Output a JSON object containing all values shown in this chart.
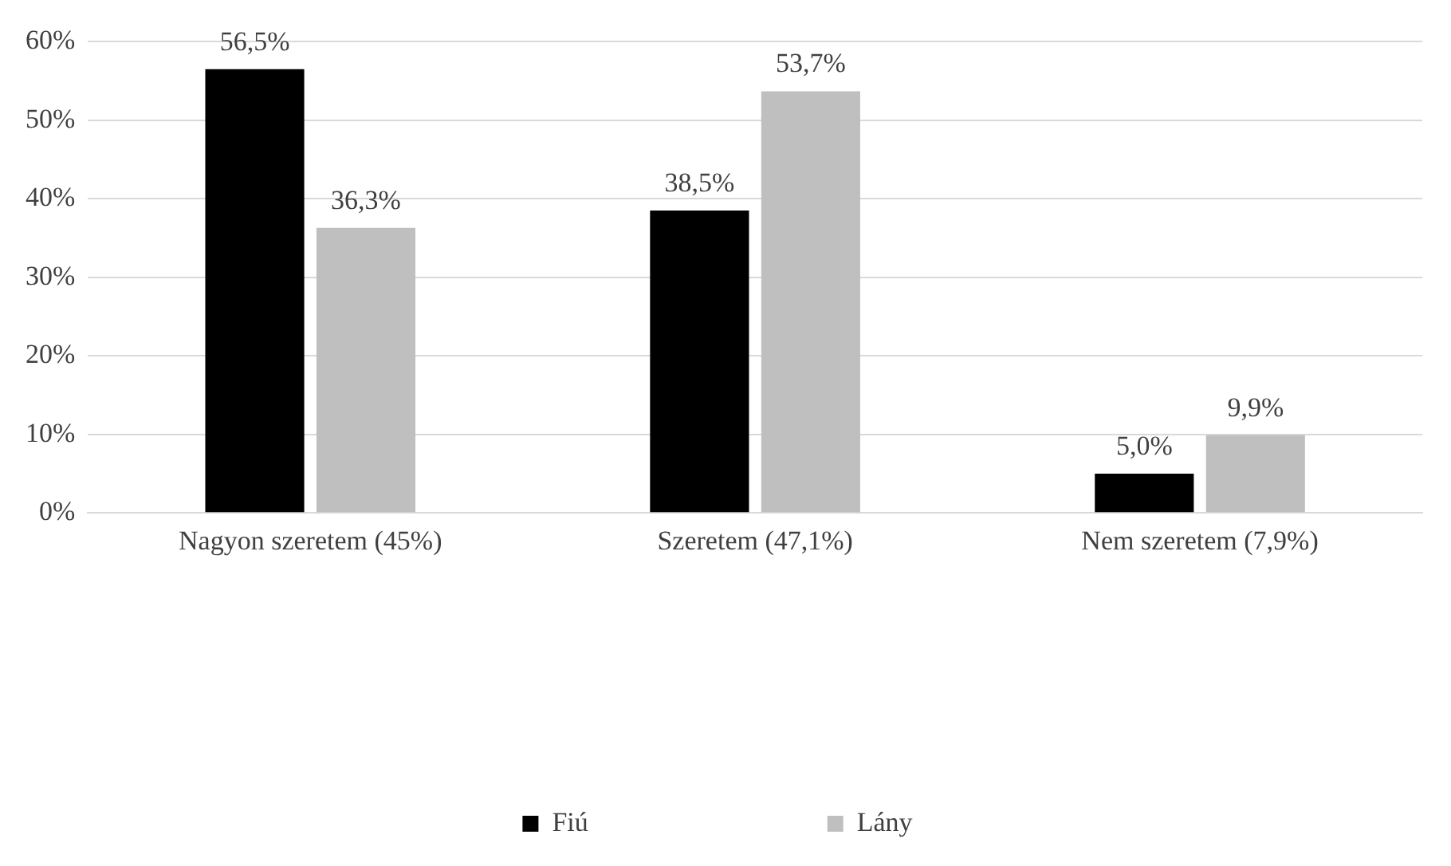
{
  "chart_data": {
    "type": "bar",
    "categories": [
      "Nagyon szeretem (45%)",
      "Szeretem (47,1%)",
      "Nem szeretem (7,9%)"
    ],
    "series": [
      {
        "name": "Fiú",
        "color": "#000000",
        "values": [
          56.5,
          38.5,
          5.0
        ],
        "value_labels": [
          "56,5%",
          "38,5%",
          "5,0%"
        ]
      },
      {
        "name": "Lány",
        "color": "#bfbfbf",
        "values": [
          36.3,
          53.7,
          9.9
        ],
        "value_labels": [
          "36,3%",
          "53,7%",
          "9,9%"
        ]
      }
    ],
    "ylim": [
      0,
      60
    ],
    "yticks": [
      {
        "value": 0,
        "label": "0%"
      },
      {
        "value": 10,
        "label": "10%"
      },
      {
        "value": 20,
        "label": "20%"
      },
      {
        "value": 30,
        "label": "30%"
      },
      {
        "value": 40,
        "label": "40%"
      },
      {
        "value": 50,
        "label": "50%"
      },
      {
        "value": 60,
        "label": "60%"
      }
    ],
    "grid": "y",
    "legend": "bottom"
  }
}
